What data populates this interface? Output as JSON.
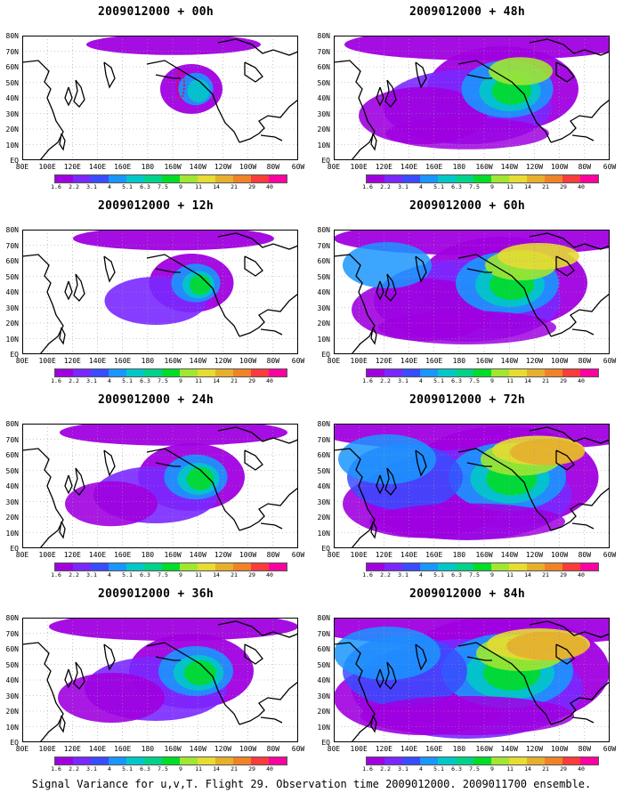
{
  "panels": [
    {
      "title": "2009012000 + 00h",
      "col": 0,
      "row": 0,
      "spread": 0.3
    },
    {
      "title": "2009012000 + 12h",
      "col": 0,
      "row": 1,
      "spread": 0.55
    },
    {
      "title": "2009012000 + 24h",
      "col": 0,
      "row": 2,
      "spread": 0.8
    },
    {
      "title": "2009012000 + 36h",
      "col": 0,
      "row": 3,
      "spread": 1.0
    },
    {
      "title": "2009012000 + 48h",
      "col": 1,
      "row": 0,
      "spread": 1.3
    },
    {
      "title": "2009012000 + 60h",
      "col": 1,
      "row": 1,
      "spread": 1.5
    },
    {
      "title": "2009012000 + 72h",
      "col": 1,
      "row": 2,
      "spread": 1.75
    },
    {
      "title": "2009012000 + 84h",
      "col": 1,
      "row": 3,
      "spread": 2.0
    }
  ],
  "lat_labels": [
    "80N",
    "70N",
    "60N",
    "50N",
    "40N",
    "30N",
    "20N",
    "10N",
    "EQ"
  ],
  "lon_labels": [
    "80E",
    "100E",
    "120E",
    "140E",
    "160E",
    "180",
    "160W",
    "140W",
    "120W",
    "100W",
    "80W",
    "60W"
  ],
  "colorbar": {
    "labels": [
      "1.6",
      "2.2",
      "3.1",
      "4",
      "5.1",
      "6.3",
      "7.5",
      "9",
      "11",
      "14",
      "21",
      "29",
      "40"
    ],
    "colors": [
      "#a000e0",
      "#7a28ff",
      "#3a4cff",
      "#1a96ff",
      "#00c8c8",
      "#00d28c",
      "#00dc28",
      "#a0e632",
      "#e6dc32",
      "#e6af2d",
      "#f08228",
      "#fa3c3c",
      "#ff00a0"
    ]
  },
  "caption": "Signal Variance for u,v,T. Flight 29. Observation time 2009012000. 2009011700 ensemble.",
  "chart_data": {
    "type": "heatmap",
    "title": "Signal Variance for u,v,T. Flight 29. Observation time 2009012000. 2009011700 ensemble.",
    "xlabel": "",
    "ylabel": "",
    "x_range": [
      "80E",
      "60W"
    ],
    "y_range": [
      "EQ",
      "80N"
    ],
    "levels": [
      1.6,
      2.2,
      3.1,
      4,
      5.1,
      6.3,
      7.5,
      9,
      11,
      14,
      21,
      29,
      40
    ],
    "panels": [
      "2009012000 + 00h",
      "2009012000 + 12h",
      "2009012000 + 24h",
      "2009012000 + 36h",
      "2009012000 + 48h",
      "2009012000 + 60h",
      "2009012000 + 72h",
      "2009012000 + 84h"
    ]
  }
}
